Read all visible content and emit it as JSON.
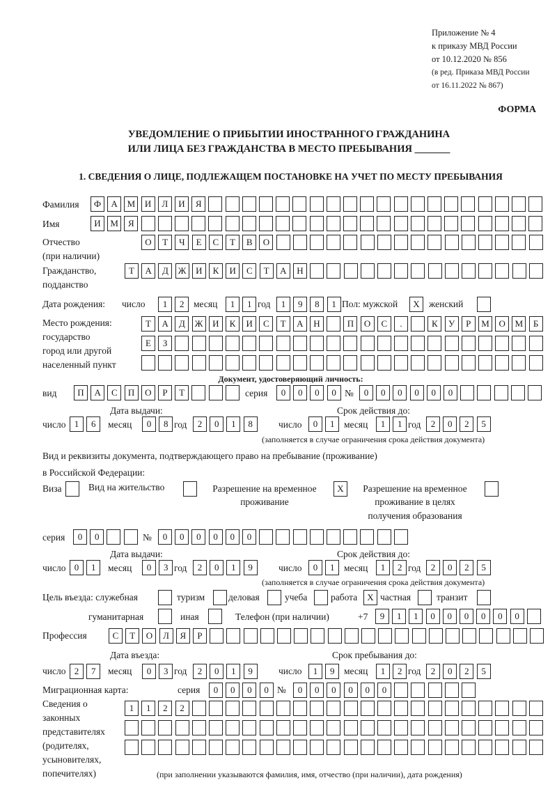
{
  "header": {
    "line1": "Приложение № 4",
    "line2": "к приказу МВД России",
    "line3": "от 10.12.2020 № 856",
    "line4": "(в ред. Приказа МВД России",
    "line5": "от 16.11.2022 № 867)"
  },
  "form_label": "ФОРМА",
  "title": {
    "line1": "УВЕДОМЛЕНИЕ О ПРИБЫТИИ ИНОСТРАННОГО ГРАЖДАНИНА",
    "line2": "ИЛИ ЛИЦА БЕЗ ГРАЖДАНСТВА В МЕСТО ПРЕБЫВАНИЯ _______"
  },
  "section1": "1. СВЕДЕНИЯ О ЛИЦЕ, ПОДЛЕЖАЩЕМ ПОСТАНОВКЕ НА УЧЕТ ПО МЕСТУ ПРЕБЫВАНИЯ",
  "labels": {
    "surname": "Фамилия",
    "name": "Имя",
    "patronymic1": "Отчество",
    "patronymic2": "(при наличии)",
    "citizenship1": "Гражданство,",
    "citizenship2": "подданство",
    "birth_date": "Дата рождения:",
    "day": "число",
    "month": "месяц",
    "year": "год",
    "sex": "Пол: мужской",
    "female": "женский",
    "birthplace1": "Место рождения:",
    "birthplace2": "государство",
    "birthplace3": "город или другой",
    "birthplace4": "населенный пункт",
    "id_doc": "Документ, удостоверяющий личность:",
    "kind": "вид",
    "series": "серия",
    "number": "№",
    "issue_date": "Дата выдачи:",
    "valid_until": "Срок действия до:",
    "valid_note": "(заполняется в случае ограничения срока действия документа)",
    "permit1": "Вид и реквизиты документа, подтверждающего право на пребывание (проживание)",
    "permit2": "в Российской Федерации:",
    "visa": "Виза",
    "residence": "Вид на жительство",
    "trp1": "Разрешение на временное",
    "trp2": "проживание",
    "trpe1": "Разрешение на временное",
    "trpe2": "проживание в целях",
    "trpe3": "получения образования",
    "purpose": "Цель въезда: служебная",
    "tourism": "туризм",
    "business": "деловая",
    "study": "учеба",
    "work": "работа",
    "private": "частная",
    "transit": "транзит",
    "humanitarian": "гуманитарная",
    "other": "иная",
    "phone": "Телефон (при наличии)",
    "phone_prefix": "+7",
    "profession": "Профессия",
    "entry_date": "Дата въезда:",
    "stay_until": "Срок пребывания до:",
    "migration_card": "Миграционная карта:",
    "reps1": "Сведения о",
    "reps2": "законных",
    "reps3": "представителях",
    "reps4": "(родителях,",
    "reps5": "усыновителях,",
    "reps6": "попечителях)",
    "reps_note": "(при заполнении указываются фамилия, имя, отчество (при наличии), дата рождения)"
  },
  "person": {
    "surname": "ФАМИЛИЯ",
    "name": "ИМЯ",
    "patronymic": "ОТЧЕСТВО",
    "citizenship": "ТАДЖИКИСТАН",
    "birth_day": "12",
    "birth_month": "11",
    "birth_year": "1981",
    "male": "X",
    "female": "",
    "birthplace1": "ТАДЖИКИСТАН ПОС. КУРМОМБ",
    "birthplace2": "ЕЗ",
    "birthplace3": ""
  },
  "id_document": {
    "kind": "ПАСПОРТ",
    "series": "0000",
    "number": "000000",
    "issue_day": "16",
    "issue_month": "08",
    "issue_year": "2018",
    "valid_day": "01",
    "valid_month": "11",
    "valid_year": "2025"
  },
  "permit": {
    "visa": "",
    "residence": "",
    "trp": "X",
    "trp_education": "",
    "series": "00",
    "number": "000000",
    "issue_day": "01",
    "issue_month": "03",
    "issue_year": "2019",
    "valid_day": "01",
    "valid_month": "12",
    "valid_year": "2025"
  },
  "purpose": {
    "official": "",
    "tourism": "",
    "business": "",
    "study": "",
    "work": "X",
    "private": "",
    "transit": "",
    "humanitarian": "",
    "other": ""
  },
  "phone": "911000000",
  "profession": "СТОЛЯР",
  "entry": {
    "day": "27",
    "month": "03",
    "year": "2019",
    "stay_day": "19",
    "stay_month": "12",
    "stay_year": "2025"
  },
  "migration_card": {
    "series": "0000",
    "number": "000000"
  },
  "representatives": {
    "line1": "1122",
    "line2": "",
    "line3": ""
  }
}
